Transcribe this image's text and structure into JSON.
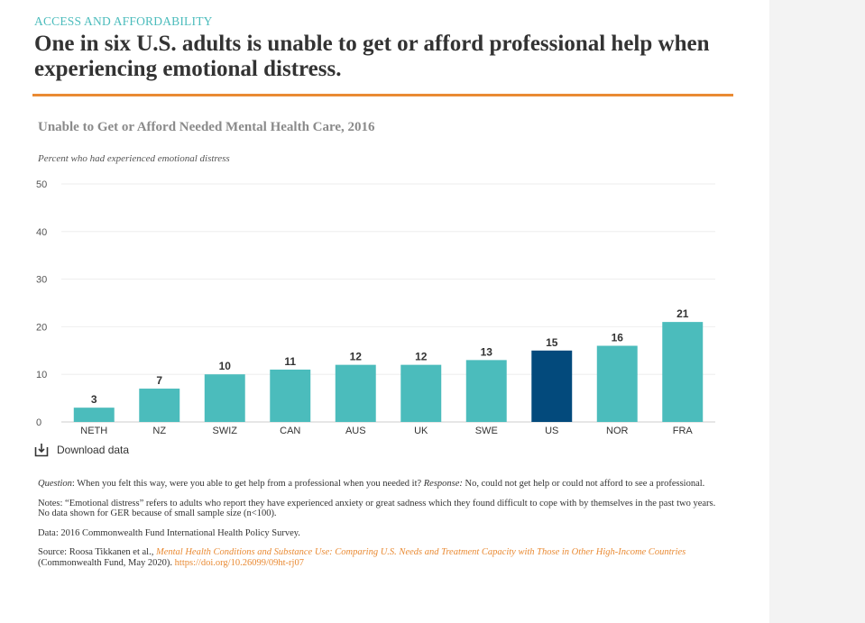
{
  "kicker": "ACCESS AND AFFORDABILITY",
  "headline": "One in six U.S. adults is unable to get or afford professional help when experiencing emotional distress.",
  "download_label": "Download data",
  "colors": {
    "accent_rule": "#e98a33",
    "bar": "#4bbcbc",
    "bar_highlight": "#034a7c",
    "kicker": "#4bbcbc"
  },
  "chart_data": {
    "type": "bar",
    "title": "Unable to Get or Afford Needed Mental Health Care, 2016",
    "subtitle": "Percent who had experienced emotional distress",
    "categories": [
      "NETH",
      "NZ",
      "SWIZ",
      "CAN",
      "AUS",
      "UK",
      "SWE",
      "US",
      "NOR",
      "FRA"
    ],
    "values": [
      3,
      7,
      10,
      11,
      12,
      12,
      13,
      15,
      16,
      21
    ],
    "highlight": "US",
    "ylim": [
      0,
      50
    ],
    "yticks": [
      0,
      10,
      20,
      30,
      40,
      50
    ],
    "ytick_labels": [
      "0",
      "10",
      "20",
      "30",
      "40",
      "50"
    ],
    "grid": true,
    "xlabel": "",
    "ylabel": ""
  },
  "notes": {
    "question_label": "Question",
    "question_text": ": When you felt this way, were you able to get help from a professional when you needed it? ",
    "response_label": "Response:",
    "response_text": " No, could not get help or could not afford to see a professional.",
    "notes_text": "Notes: “Emotional distress” refers to adults who report they have experienced anxiety or great sadness which they found difficult to cope with by themselves in the past two years. No data shown for GER because of small sample size (n<100).",
    "data_text": "Data: 2016 Commonwealth Fund International Health Policy Survey.",
    "source_prefix": "Source: Roosa Tikkanen et al., ",
    "source_title": "Mental Health Conditions and Substance Use: Comparing U.S. Needs and Treatment Capacity with Those in Other High-Income Countries",
    "source_middle": " (Commonwealth Fund, May 2020). ",
    "source_doi": "https://doi.org/10.26099/09ht-rj07"
  }
}
